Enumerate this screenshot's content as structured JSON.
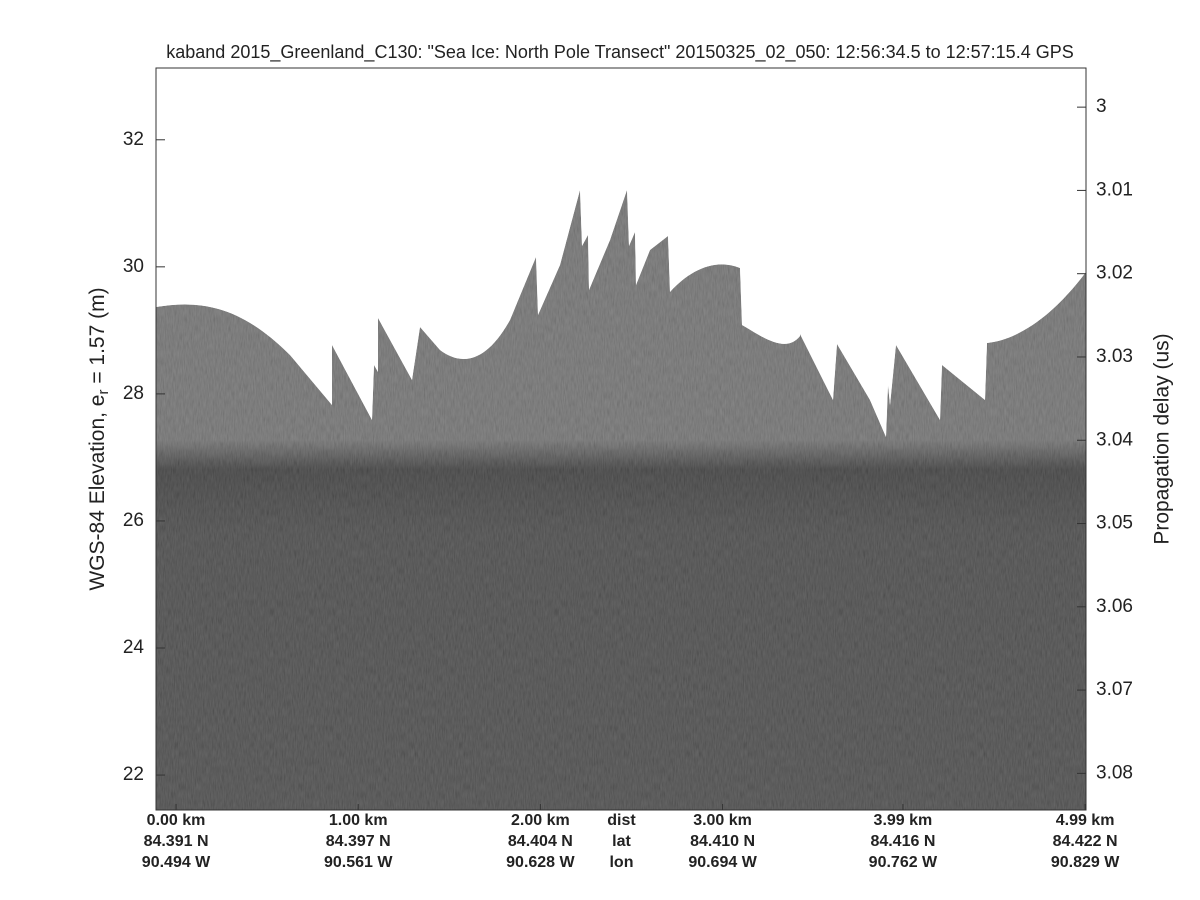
{
  "chart_data": {
    "type": "echogram",
    "title": "kaband 2015_Greenland_C130: \"Sea Ice: North Pole Transect\"  20150325_02_050: 12:56:34.5 to 12:57:15.4 GPS",
    "ylabel": {
      "prefix": "WGS-84 Elevation, e",
      "subscript": "r",
      "suffix": " = 1.57 (m)"
    },
    "y2label": "Propagation delay (us)",
    "ylim": [
      21.45,
      33.13
    ],
    "yticks": [
      22,
      24,
      26,
      28,
      30,
      32
    ],
    "y2lim": [
      3.0844,
      2.9953
    ],
    "y2ticks": [
      3,
      3.01,
      3.02,
      3.03,
      3.04,
      3.05,
      3.06,
      3.07,
      3.08
    ],
    "xlim": [
      -0.11,
      4.995
    ],
    "xticks": [
      {
        "value": 0,
        "label": "0.00 km"
      },
      {
        "value": 1,
        "label": "1.00 km"
      },
      {
        "value": 2,
        "label": "2.00 km"
      },
      {
        "value": 3,
        "label": "3.00 km"
      },
      {
        "value": 3.99,
        "label": "3.99 km"
      },
      {
        "value": 4.99,
        "label": "4.99 km"
      }
    ],
    "lat_labels": [
      "84.391 N",
      "84.397 N",
      "84.404 N",
      "84.410 N",
      "84.416 N",
      "84.422 N"
    ],
    "lon_labels": [
      "90.494 W",
      "90.561 W",
      "90.628 W",
      "90.694 W",
      "90.762 W",
      "90.829 W"
    ],
    "row_names": [
      "dist",
      "lat",
      "lon"
    ]
  }
}
